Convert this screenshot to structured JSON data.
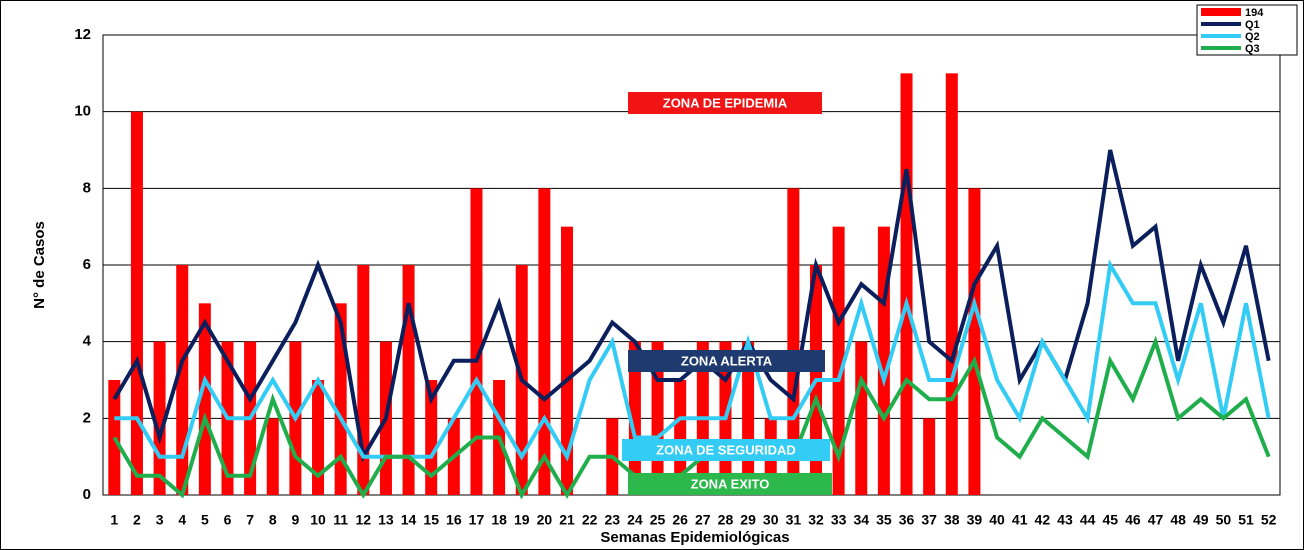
{
  "chart_data": {
    "type": "bar_line",
    "y_label": "N° de Casos",
    "x_label": "Semanas Epidemiológicas",
    "categories": [
      1,
      2,
      3,
      4,
      5,
      6,
      7,
      8,
      9,
      10,
      11,
      12,
      13,
      14,
      15,
      16,
      17,
      18,
      19,
      20,
      21,
      22,
      23,
      24,
      25,
      26,
      27,
      28,
      29,
      30,
      31,
      32,
      33,
      34,
      35,
      36,
      37,
      38,
      39,
      40,
      41,
      42,
      43,
      44,
      45,
      46,
      47,
      48,
      49,
      50,
      51,
      52
    ],
    "series": [
      {
        "name": "194",
        "kind": "bar",
        "color": "#ff0000",
        "values": [
          3,
          10,
          4,
          6,
          5,
          4,
          4,
          2,
          4,
          3,
          5,
          6,
          4,
          6,
          3,
          2,
          8,
          3,
          6,
          8,
          7,
          0,
          2,
          4,
          4,
          3,
          4,
          4,
          4,
          2,
          8,
          6,
          7,
          4,
          7,
          11,
          2,
          11,
          8,
          null,
          null,
          null,
          null,
          null,
          null,
          null,
          null,
          null,
          null,
          null,
          null,
          null
        ]
      },
      {
        "name": "Q1",
        "kind": "line",
        "color": "#0a1f5c",
        "values": [
          2.5,
          3.5,
          1.5,
          3.5,
          4.5,
          3.5,
          2.5,
          3.5,
          4.5,
          6,
          4.5,
          1,
          2,
          5,
          2.5,
          3.5,
          3.5,
          5,
          3,
          2.5,
          3,
          3.5,
          4.5,
          4,
          3,
          3,
          3.5,
          3,
          4,
          3,
          2.5,
          6,
          4.5,
          5.5,
          5,
          8.5,
          4,
          3.5,
          5.5,
          6.5,
          3,
          4,
          3,
          5,
          9,
          6.5,
          7,
          3.5,
          6,
          4.5,
          6.5,
          3.5
        ]
      },
      {
        "name": "Q2",
        "kind": "line",
        "color": "#33ccf5",
        "values": [
          2,
          2,
          1,
          1,
          3,
          2,
          2,
          3,
          2,
          3,
          2,
          1,
          1,
          1,
          1,
          2,
          3,
          2,
          1,
          2,
          1,
          3,
          4,
          1.5,
          1.5,
          2,
          2,
          2,
          4,
          2,
          2,
          3,
          3,
          5,
          3,
          5,
          3,
          3,
          5,
          3,
          2,
          4,
          3,
          2,
          6,
          5,
          5,
          3,
          5,
          2,
          5,
          2
        ]
      },
      {
        "name": "Q3",
        "kind": "line",
        "color": "#1fae4b",
        "values": [
          1.5,
          0.5,
          0.5,
          0,
          2,
          0.5,
          0.5,
          2.5,
          1,
          0.5,
          1,
          0,
          1,
          1,
          0.5,
          1,
          1.5,
          1.5,
          0,
          1,
          0,
          1,
          1,
          0.5,
          0.5,
          0.5,
          1,
          1,
          1,
          1,
          1,
          2.5,
          1,
          3,
          2,
          3,
          2.5,
          2.5,
          3.5,
          1.5,
          1,
          2,
          1.5,
          1,
          3.5,
          2.5,
          4,
          2,
          2.5,
          2,
          2.5,
          1
        ]
      }
    ],
    "annotations": [
      {
        "text": "ZONA DE EPIDEMIA",
        "color": "#f01414"
      },
      {
        "text": "ZONA  ALERTA",
        "color": "#1f3a6e"
      },
      {
        "text": "ZONA DE SEGURIDAD",
        "color": "#33ccf5"
      },
      {
        "text": "ZONA  EXITO",
        "color": "#2db84c"
      }
    ],
    "ylim": [
      0,
      12
    ],
    "yticks": [
      0,
      2,
      4,
      6,
      8,
      10,
      12
    ],
    "grid": true,
    "legend": "top-right"
  }
}
